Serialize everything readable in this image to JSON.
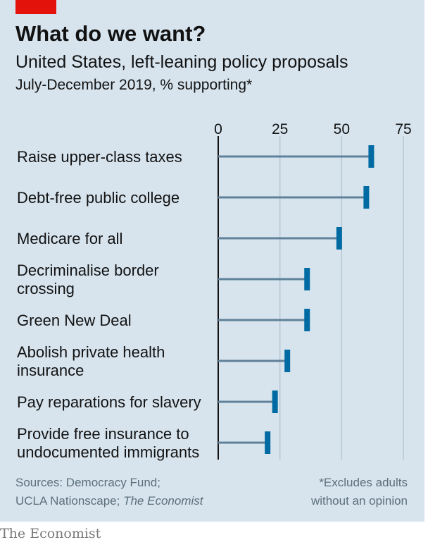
{
  "header": {
    "title": "What do we want?",
    "subtitle": "United States, left-leaning policy proposals",
    "note": "July-December 2019, % supporting*"
  },
  "footer": {
    "sources_line1": "Sources: Democracy Fund;",
    "sources_line2a": "UCLA Nationscape; ",
    "sources_line2b": "The Economist",
    "footnote_line1": "*Excludes adults",
    "footnote_line2": "without an opinion"
  },
  "brand": "The Economist",
  "colors": {
    "accent_red": "#e3120b",
    "panel_bg": "#d7e4ee",
    "bar_line": "#5f8199",
    "marker": "#006ba2",
    "grid": "#b3c6d4"
  },
  "chart_data": {
    "type": "bar",
    "title": "What do we want?",
    "subtitle": "United States, left-leaning policy proposals",
    "xlabel": "",
    "ylabel": "",
    "xlim": [
      0,
      75
    ],
    "ticks": [
      0,
      25,
      50,
      75
    ],
    "grid": true,
    "categories": [
      [
        "Raise upper-class taxes"
      ],
      [
        "Debt-free public college"
      ],
      [
        "Medicare for all"
      ],
      [
        "Decriminalise border",
        "crossing"
      ],
      [
        "Green New Deal"
      ],
      [
        "Abolish private health",
        "insurance"
      ],
      [
        "Pay reparations for slavery"
      ],
      [
        "Provide free insurance to",
        "undocumented immigrants"
      ]
    ],
    "values": [
      62,
      60,
      49,
      36,
      36,
      28,
      23,
      20
    ]
  }
}
